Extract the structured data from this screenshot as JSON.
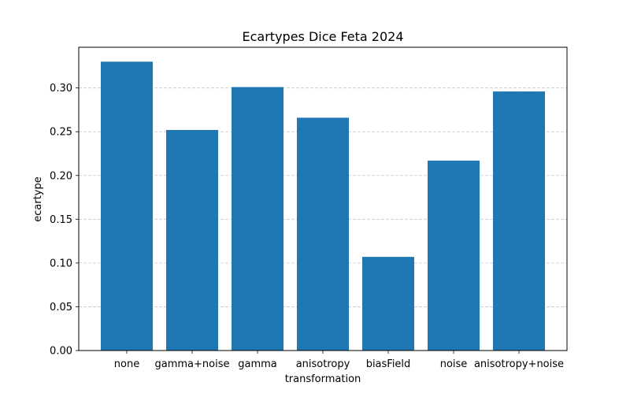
{
  "chart_data": {
    "type": "bar",
    "title": "Ecartypes Dice Feta 2024",
    "xlabel": "transformation",
    "ylabel": "ecartype",
    "categories": [
      "none",
      "gamma+noise",
      "gamma",
      "anisotropy",
      "biasField",
      "noise",
      "anisotropy+noise"
    ],
    "values": [
      0.33,
      0.252,
      0.301,
      0.266,
      0.107,
      0.217,
      0.296
    ],
    "ylim": [
      0,
      0.3465
    ],
    "yticks": [
      "0.00",
      "0.05",
      "0.10",
      "0.15",
      "0.20",
      "0.25",
      "0.30"
    ],
    "grid": "y-dashed",
    "legend": "none",
    "colors": {
      "bar": "#1f77b4",
      "grid": "#c8c8c8",
      "axis": "#000000"
    }
  }
}
